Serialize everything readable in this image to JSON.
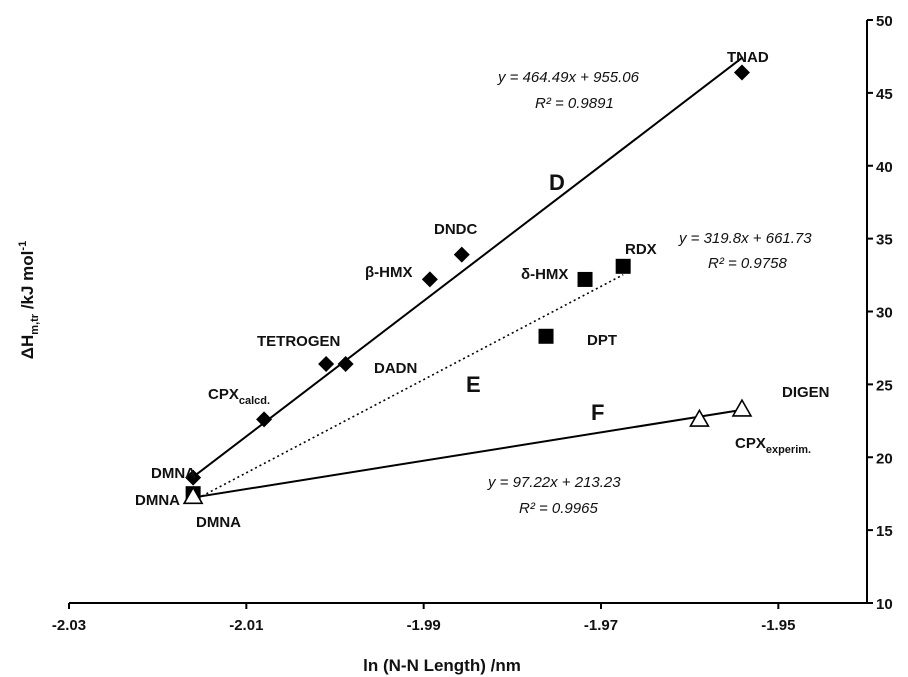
{
  "chart_data": {
    "type": "scatter",
    "xlabel": "ln (N-N Length)  /nm",
    "ylabel": "ΔH",
    "ylabel_sub": "m,tr",
    "ylabel_unit": " /kJ mol",
    "ylabel_sup": "-1",
    "xlim": [
      -2.03,
      -1.94
    ],
    "ylim": [
      10,
      50
    ],
    "x_ticks": [
      -2.03,
      -2.01,
      -1.99,
      -1.97,
      -1.95
    ],
    "x_tick_labels": [
      "-2.03",
      "-2.01",
      "-1.99",
      "-1.97",
      "-1.95"
    ],
    "y_ticks": [
      10,
      15,
      20,
      25,
      30,
      35,
      40,
      45,
      50
    ],
    "y_tick_labels": [
      "10",
      "15",
      "20",
      "25",
      "30",
      "35",
      "40",
      "45",
      "50"
    ],
    "grid": false,
    "series": [
      {
        "marker": "diamond",
        "line": "solid",
        "fit": {
          "slope": 464.49,
          "intercept": 955.06,
          "x_range": [
            -2.016,
            -1.954
          ]
        },
        "points": [
          {
            "label": "DMNA",
            "x": -2.016,
            "y": 18.6,
            "label_sub": ""
          },
          {
            "label": "CPX",
            "label_sub": "calcd.",
            "x": -2.008,
            "y": 22.6
          },
          {
            "label": "TETROGEN",
            "x": -2.001,
            "y": 26.4,
            "label_sub": ""
          },
          {
            "label": "DADN",
            "x": -1.9988,
            "y": 26.4,
            "label_sub": ""
          },
          {
            "label": "β-HMX",
            "x": -1.9893,
            "y": 32.2,
            "label_sub": ""
          },
          {
            "label": "DNDC",
            "x": -1.9857,
            "y": 33.9,
            "label_sub": ""
          },
          {
            "label": "TNAD",
            "x": -1.9541,
            "y": 46.4,
            "label_sub": ""
          }
        ]
      },
      {
        "marker": "square",
        "line": "dotted",
        "fit": {
          "slope": 319.8,
          "intercept": 661.73,
          "x_range": [
            -2.016,
            -1.9675
          ]
        },
        "points": [
          {
            "label": "DMNA",
            "x": -2.016,
            "y": 17.5,
            "label_sub": ""
          },
          {
            "label": "DPT",
            "x": -1.9762,
            "y": 28.3,
            "label_sub": ""
          },
          {
            "label": "δ-HMX",
            "x": -1.9718,
            "y": 32.2,
            "label_sub": ""
          },
          {
            "label": "RDX",
            "x": -1.9675,
            "y": 33.1,
            "label_sub": ""
          }
        ]
      },
      {
        "marker": "triangle-open",
        "line": "solid",
        "fit": {
          "slope": 97.22,
          "intercept": 213.23,
          "x_range": [
            -2.016,
            -1.9541
          ]
        },
        "points": [
          {
            "label": "DMNA",
            "x": -2.016,
            "y": 17.3,
            "label_sub": ""
          },
          {
            "label": "CPX",
            "label_sub": "experim.",
            "x": -1.9589,
            "y": 22.6
          },
          {
            "label": "DIGEN",
            "x": -1.9541,
            "y": 23.3,
            "label_sub": ""
          }
        ]
      }
    ],
    "annotations": {
      "region_D": "D",
      "region_E": "E",
      "region_F": "F",
      "eq_D": "y = 464.49x + 955.06",
      "r2_D": "R² = 0.9891",
      "eq_E": "y = 319.8x + 661.73",
      "r2_E": "R² = 0.9758",
      "eq_F": "y = 97.22x + 213.23",
      "r2_F": "R² = 0.9965"
    }
  }
}
